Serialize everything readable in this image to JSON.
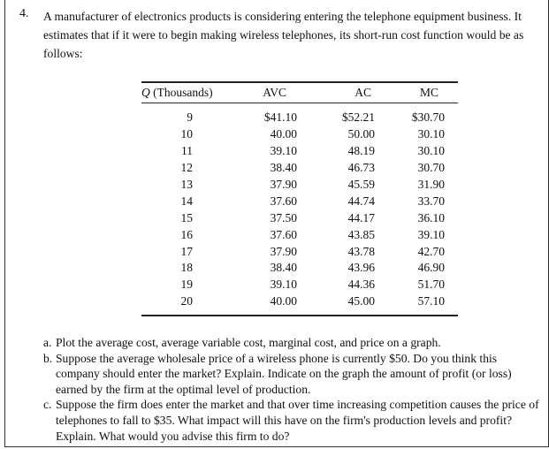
{
  "problem_number": "4.",
  "intro": "A manufacturer of electronics products is considering entering the telephone equipment business. It estimates that if it were to begin making wireless telephones, its short-run cost function would be as follows:",
  "table": {
    "headers": [
      "Q (Thousands)",
      "AVC",
      "AC",
      "MC"
    ],
    "rows": [
      [
        "9",
        "$41.10",
        "$52.21",
        "$30.70"
      ],
      [
        "10",
        "40.00",
        "50.00",
        "30.10"
      ],
      [
        "11",
        "39.10",
        "48.19",
        "30.10"
      ],
      [
        "12",
        "38.40",
        "46.73",
        "30.70"
      ],
      [
        "13",
        "37.90",
        "45.59",
        "31.90"
      ],
      [
        "14",
        "37.60",
        "44.74",
        "33.70"
      ],
      [
        "15",
        "37.50",
        "44.17",
        "36.10"
      ],
      [
        "16",
        "37.60",
        "43.85",
        "39.10"
      ],
      [
        "17",
        "37.90",
        "43.78",
        "42.70"
      ],
      [
        "18",
        "38.40",
        "43.96",
        "46.90"
      ],
      [
        "19",
        "39.10",
        "44.36",
        "51.70"
      ],
      [
        "20",
        "40.00",
        "45.00",
        "57.10"
      ]
    ]
  },
  "items": [
    {
      "label": "a.",
      "text": "Plot the average cost, average variable cost, marginal cost, and price on a graph."
    },
    {
      "label": "b.",
      "text": "Suppose the average wholesale price of a wireless phone is currently $50. Do you think this company should enter the market? Explain. Indicate on the graph the amount of profit (or loss) earned by the firm at the optimal level of production."
    },
    {
      "label": "c.",
      "text": "Suppose the firm does enter the market and that over time increasing competition causes the price of telephones to fall to $35. What impact will this have on the firm's production levels and profit? Explain. What would you advise this firm to do?"
    }
  ]
}
